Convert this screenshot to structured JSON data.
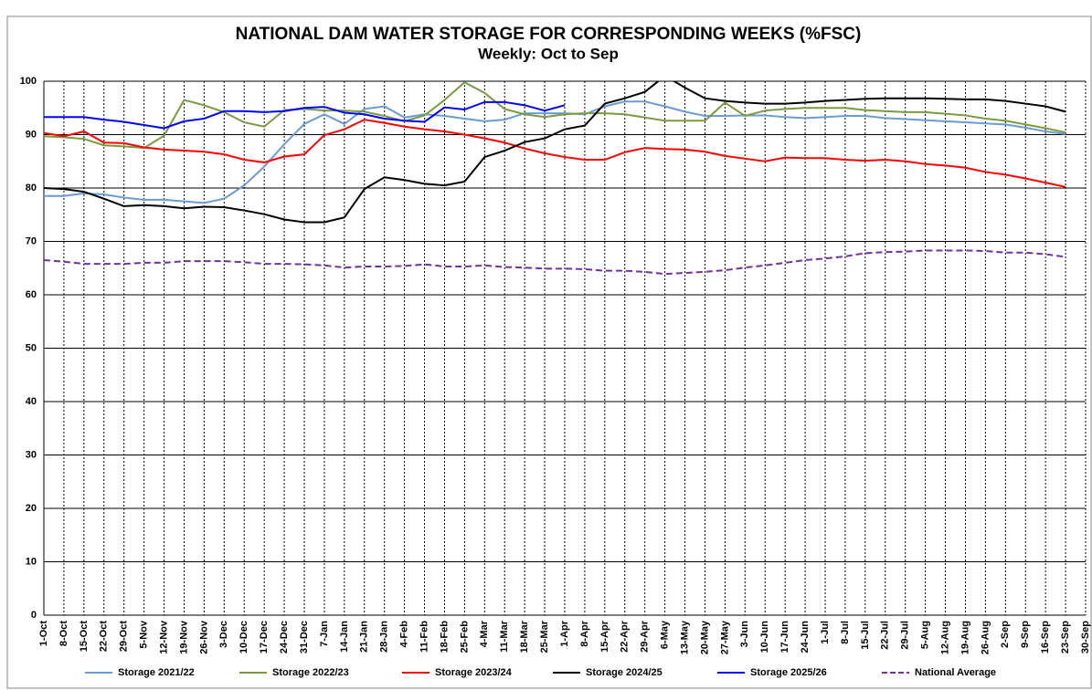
{
  "chart_data": {
    "type": "line",
    "title": "NATIONAL DAM WATER STORAGE FOR CORRESPONDING WEEKS (%FSC)",
    "subtitle": "Weekly: Oct to Sep",
    "categories": [
      "1-Oct",
      "8-Oct",
      "15-Oct",
      "22-Oct",
      "29-Oct",
      "5-Nov",
      "12-Nov",
      "19-Nov",
      "26-Nov",
      "3-Dec",
      "10-Dec",
      "17-Dec",
      "24-Dec",
      "31-Dec",
      "7-Jan",
      "14-Jan",
      "21-Jan",
      "28-Jan",
      "4-Feb",
      "11-Feb",
      "18-Feb",
      "25-Feb",
      "4-Mar",
      "11-Mar",
      "18-Mar",
      "25-Mar",
      "1-Apr",
      "8-Apr",
      "15-Apr",
      "22-Apr",
      "29-Apr",
      "6-May",
      "13-May",
      "20-May",
      "27-May",
      "3-Jun",
      "10-Jun",
      "17-Jun",
      "24-Jun",
      "1-Jul",
      "8-Jul",
      "15-Jul",
      "22-Jul",
      "29-Jul",
      "5-Aug",
      "12-Aug",
      "19-Aug",
      "26-Aug",
      "2-Sep",
      "9-Sep",
      "16-Sep",
      "23-Sep",
      "30-Sep"
    ],
    "ylim": [
      0,
      100
    ],
    "yticks": [
      0,
      10,
      20,
      30,
      40,
      50,
      60,
      70,
      80,
      90,
      100
    ],
    "grid": true,
    "legend": "bottom",
    "series": [
      {
        "name": "Storage 2021/22",
        "color": "#6a9bd1",
        "line_style": "solid",
        "values": [
          78.5,
          78.5,
          79,
          78.8,
          78.2,
          77.8,
          77.8,
          77.5,
          77.2,
          78,
          80.5,
          84,
          88.2,
          92,
          93.8,
          92,
          94.8,
          95.3,
          93.2,
          93.8,
          93.5,
          93,
          92.5,
          92.8,
          94,
          94,
          94,
          93.8,
          95.3,
          96.2,
          96.2,
          95.3,
          94.3,
          93.5,
          93.5,
          93.6,
          93.6,
          93.3,
          93.1,
          93.3,
          93.5,
          93.5,
          93.1,
          92.9,
          92.7,
          92.5,
          92.3,
          92.1,
          91.9,
          91.3,
          90.6,
          90.1,
          null
        ]
      },
      {
        "name": "Storage 2022/23",
        "color": "#7a9a3f",
        "line_style": "solid",
        "values": [
          89.7,
          89.5,
          89.2,
          88,
          87.8,
          87.5,
          89.8,
          96.5,
          95.5,
          94.2,
          92.3,
          91.5,
          94.6,
          94.8,
          94.5,
          94.5,
          94.3,
          93.5,
          92.5,
          93.6,
          96.5,
          99.8,
          97.8,
          94.8,
          93.8,
          93.3,
          93.8,
          94,
          94,
          93.8,
          93.2,
          92.6,
          92.6,
          92.6,
          96,
          93.5,
          94.5,
          94.8,
          95,
          95,
          95,
          94.6,
          94.4,
          94.2,
          94.2,
          93.9,
          93.6,
          93,
          92.6,
          91.9,
          91.2,
          90.4,
          null
        ]
      },
      {
        "name": "Storage 2023/24",
        "color": "#ff0000",
        "line_style": "solid",
        "values": [
          90.3,
          89.7,
          90.6,
          88.5,
          88.4,
          87.6,
          87.2,
          87,
          86.8,
          86.3,
          85.3,
          84.8,
          85.9,
          86.3,
          89.9,
          91,
          92.8,
          92.2,
          91.5,
          91,
          90.6,
          90,
          89.3,
          88.5,
          87.4,
          86.5,
          85.8,
          85.3,
          85.3,
          86.7,
          87.5,
          87.3,
          87.2,
          86.8,
          86,
          85.5,
          85,
          85.7,
          85.6,
          85.6,
          85.3,
          85.1,
          85.3,
          85,
          84.5,
          84.2,
          83.8,
          83,
          82.5,
          81.8,
          81,
          80.2,
          null
        ]
      },
      {
        "name": "Storage 2024/25",
        "color": "#000000",
        "line_style": "solid",
        "values": [
          80,
          79.8,
          79.3,
          78,
          76.6,
          76.8,
          76.6,
          76.2,
          76.5,
          76.4,
          75.8,
          75.1,
          74.1,
          73.6,
          73.6,
          74.5,
          79.8,
          82,
          81.5,
          80.8,
          80.5,
          81.2,
          85.8,
          87,
          88.6,
          89.3,
          91,
          91.7,
          95.8,
          96.8,
          98,
          101,
          98.8,
          96.8,
          96.3,
          96,
          95.8,
          95.8,
          96,
          96.3,
          96.5,
          96.7,
          96.8,
          96.8,
          96.8,
          96.7,
          96.6,
          96.6,
          96.3,
          95.8,
          95.3,
          94.3,
          null
        ]
      },
      {
        "name": "Storage 2025/26",
        "color": "#0000ff",
        "line_style": "solid",
        "values": [
          93.3,
          93.3,
          93.3,
          92.8,
          92.4,
          91.8,
          91.2,
          92.5,
          93,
          94.4,
          94.4,
          94.2,
          94.4,
          95,
          95.2,
          94.1,
          93.8,
          93,
          92.6,
          92.4,
          95.1,
          94.7,
          96.1,
          96.1,
          95.5,
          94.5,
          95.5,
          null,
          null,
          null,
          null,
          null,
          null,
          null,
          null,
          null,
          null,
          null,
          null,
          null,
          null,
          null,
          null,
          null,
          null,
          null,
          null,
          null,
          null,
          null,
          null,
          null,
          null
        ]
      },
      {
        "name": "National Average",
        "color": "#7030a0",
        "line_style": "dashed",
        "values": [
          66.5,
          66.2,
          65.8,
          65.8,
          65.8,
          66,
          66,
          66.3,
          66.3,
          66.3,
          66.1,
          65.8,
          65.8,
          65.7,
          65.5,
          65.1,
          65.3,
          65.3,
          65.4,
          65.7,
          65.3,
          65.3,
          65.5,
          65.2,
          65.1,
          64.9,
          64.9,
          64.8,
          64.5,
          64.5,
          64.3,
          63.9,
          64.1,
          64.3,
          64.6,
          65.1,
          65.5,
          66,
          66.5,
          66.8,
          67.2,
          67.8,
          68,
          68.1,
          68.3,
          68.3,
          68.3,
          68.2,
          67.9,
          67.9,
          67.6,
          67.1,
          null
        ]
      }
    ]
  }
}
